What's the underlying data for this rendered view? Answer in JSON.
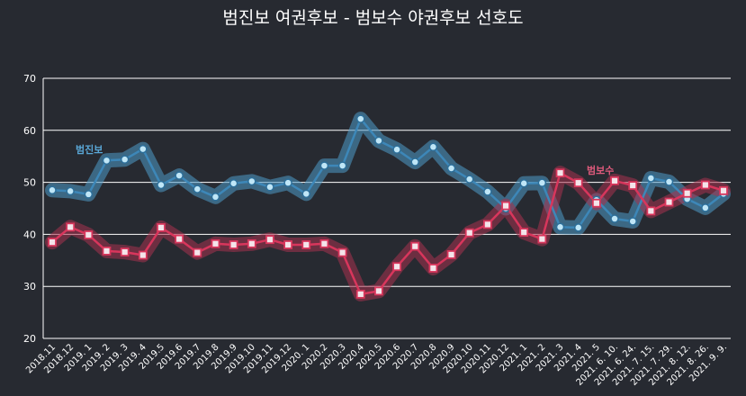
{
  "chart_data": {
    "type": "line",
    "title": "범진보 여권후보 - 범보수 야권후보 선호도",
    "ylim": [
      20,
      70
    ],
    "yticks": [
      20,
      30,
      40,
      50,
      60,
      70
    ],
    "grid": true,
    "categories": [
      "2018.11",
      "2018.12",
      "2019. 1",
      "2019. 2",
      "2019. 3",
      "2019. 4",
      "2019.5",
      "2019.6",
      "2019.7",
      "2019.8",
      "2019.9",
      "2019.10",
      "2019.11",
      "2019.12",
      "2020. 1",
      "2020.2",
      "2020.3",
      "2020.4",
      "2020.5",
      "2020.6",
      "2020.7",
      "2020.8",
      "2020.9",
      "2020.10",
      "2020.11",
      "2020.12",
      "2021. 1",
      "2021. 2",
      "2021. 3",
      "2021. 4",
      "2021. 5",
      "2021. 6. 10.",
      "2021. 6. 24.",
      "2021. 7. 15.",
      "2021. 7. 29.",
      "2021. 8. 12.",
      "2021. 8. 26.",
      "2021. 9. 9."
    ],
    "series": [
      {
        "name": "범진보",
        "color": "#3d87b8",
        "band_color": "#4f9ac8",
        "point_fill": "#bfe6f7",
        "label_color": "#5aa8d8",
        "values": [
          48.5,
          48.3,
          47.7,
          54.2,
          54.4,
          56.4,
          49.5,
          51.3,
          48.7,
          47.2,
          49.8,
          50.2,
          49.1,
          49.9,
          47.8,
          53.2,
          53.2,
          62.2,
          58.0,
          56.3,
          53.9,
          56.8,
          52.7,
          50.6,
          48.2,
          45.0,
          49.8,
          49.9,
          41.4,
          41.3,
          46.6,
          43.0,
          42.5,
          50.8,
          50.1,
          46.8,
          45.1,
          47.8
        ]
      },
      {
        "name": "범보수",
        "color": "#d8365c",
        "band_color": "#a8324e",
        "point_fill": "#f4e4ea",
        "label_color": "#e05b7d",
        "values": [
          38.5,
          41.4,
          39.9,
          36.8,
          36.6,
          36.0,
          41.3,
          39.1,
          36.5,
          38.2,
          38.0,
          38.2,
          39.0,
          38.0,
          38.0,
          38.2,
          36.5,
          28.5,
          29.1,
          33.8,
          37.7,
          33.5,
          36.1,
          40.3,
          41.9,
          45.5,
          40.4,
          39.1,
          51.8,
          49.9,
          46.0,
          50.3,
          49.4,
          44.5,
          46.2,
          47.9,
          49.5,
          48.4
        ]
      }
    ]
  }
}
